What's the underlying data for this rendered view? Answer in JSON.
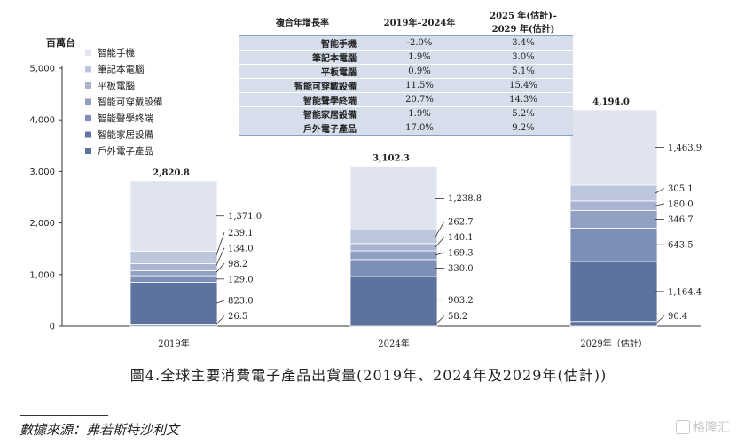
{
  "chart_data": {
    "type": "bar",
    "stacked": true,
    "unit": "百萬台",
    "categories": [
      "2019年",
      "2024年",
      "2029年（估計）"
    ],
    "totals": [
      "2,820.8",
      "3,102.3",
      "4,194.0"
    ],
    "series": [
      {
        "name": "戶外電子產品",
        "color": "#5b6f9b",
        "values": [
          26.5,
          58.2,
          90.4
        ],
        "labels": [
          "26.5",
          "58.2",
          "90.4"
        ]
      },
      {
        "name": "智能家居設備",
        "color": "#5e72a0",
        "values": [
          823.0,
          903.2,
          1164.4
        ],
        "labels": [
          "823.0",
          "903.2",
          "1,164.4"
        ]
      },
      {
        "name": "智能聲學終端",
        "color": "#7d8fb6",
        "values": [
          129.0,
          330.0,
          643.5
        ],
        "labels": [
          "129.0",
          "330.0",
          "643.5"
        ]
      },
      {
        "name": "智能可穿戴設備",
        "color": "#909fc2",
        "values": [
          98.2,
          169.3,
          346.7
        ],
        "labels": [
          "98.2",
          "169.3",
          "346.7"
        ]
      },
      {
        "name": "平板電腦",
        "color": "#a8b4d0",
        "values": [
          134.0,
          140.1,
          180.0
        ],
        "labels": [
          "134.0",
          "140.1",
          "180.0"
        ]
      },
      {
        "name": "筆記本電腦",
        "color": "#bcc6dc",
        "values": [
          239.1,
          262.7,
          305.1
        ],
        "labels": [
          "239.1",
          "262.7",
          "305.1"
        ]
      },
      {
        "name": "智能手機",
        "color": "#dfe4ef",
        "values": [
          1371.0,
          1238.8,
          1463.9
        ],
        "labels": [
          "1,371.0",
          "1,238.8",
          "1,463.9"
        ]
      }
    ],
    "ylim": [
      0,
      5000
    ],
    "yticks": [
      "0",
      "1,000",
      "2,000",
      "3,000",
      "4,000",
      "5,000"
    ],
    "grid": false,
    "legend_position": "top-left"
  },
  "growth_table": {
    "headers": [
      "複合年增長率",
      "2019年–2024年",
      "2025 年(估計)–\n2029 年(估計)"
    ],
    "rows": [
      [
        "智能手機",
        "-2.0%",
        "3.4%"
      ],
      [
        "筆記本電腦",
        "1.9%",
        "3.0%"
      ],
      [
        "平板電腦",
        "0.9%",
        "5.1%"
      ],
      [
        "智能可穿戴設備",
        "11.5%",
        "15.4%"
      ],
      [
        "智能聲學終端",
        "20.7%",
        "14.3%"
      ],
      [
        "智能家居設備",
        "1.9%",
        "5.2%"
      ],
      [
        "戶外電子產品",
        "17.0%",
        "9.2%"
      ]
    ]
  },
  "caption": "圖4.全球主要消費電子產品出貨量(2019年、2024年及2029年(估計))",
  "source": "數據來源：弗若斯特沙利文",
  "watermark": "格隆汇"
}
